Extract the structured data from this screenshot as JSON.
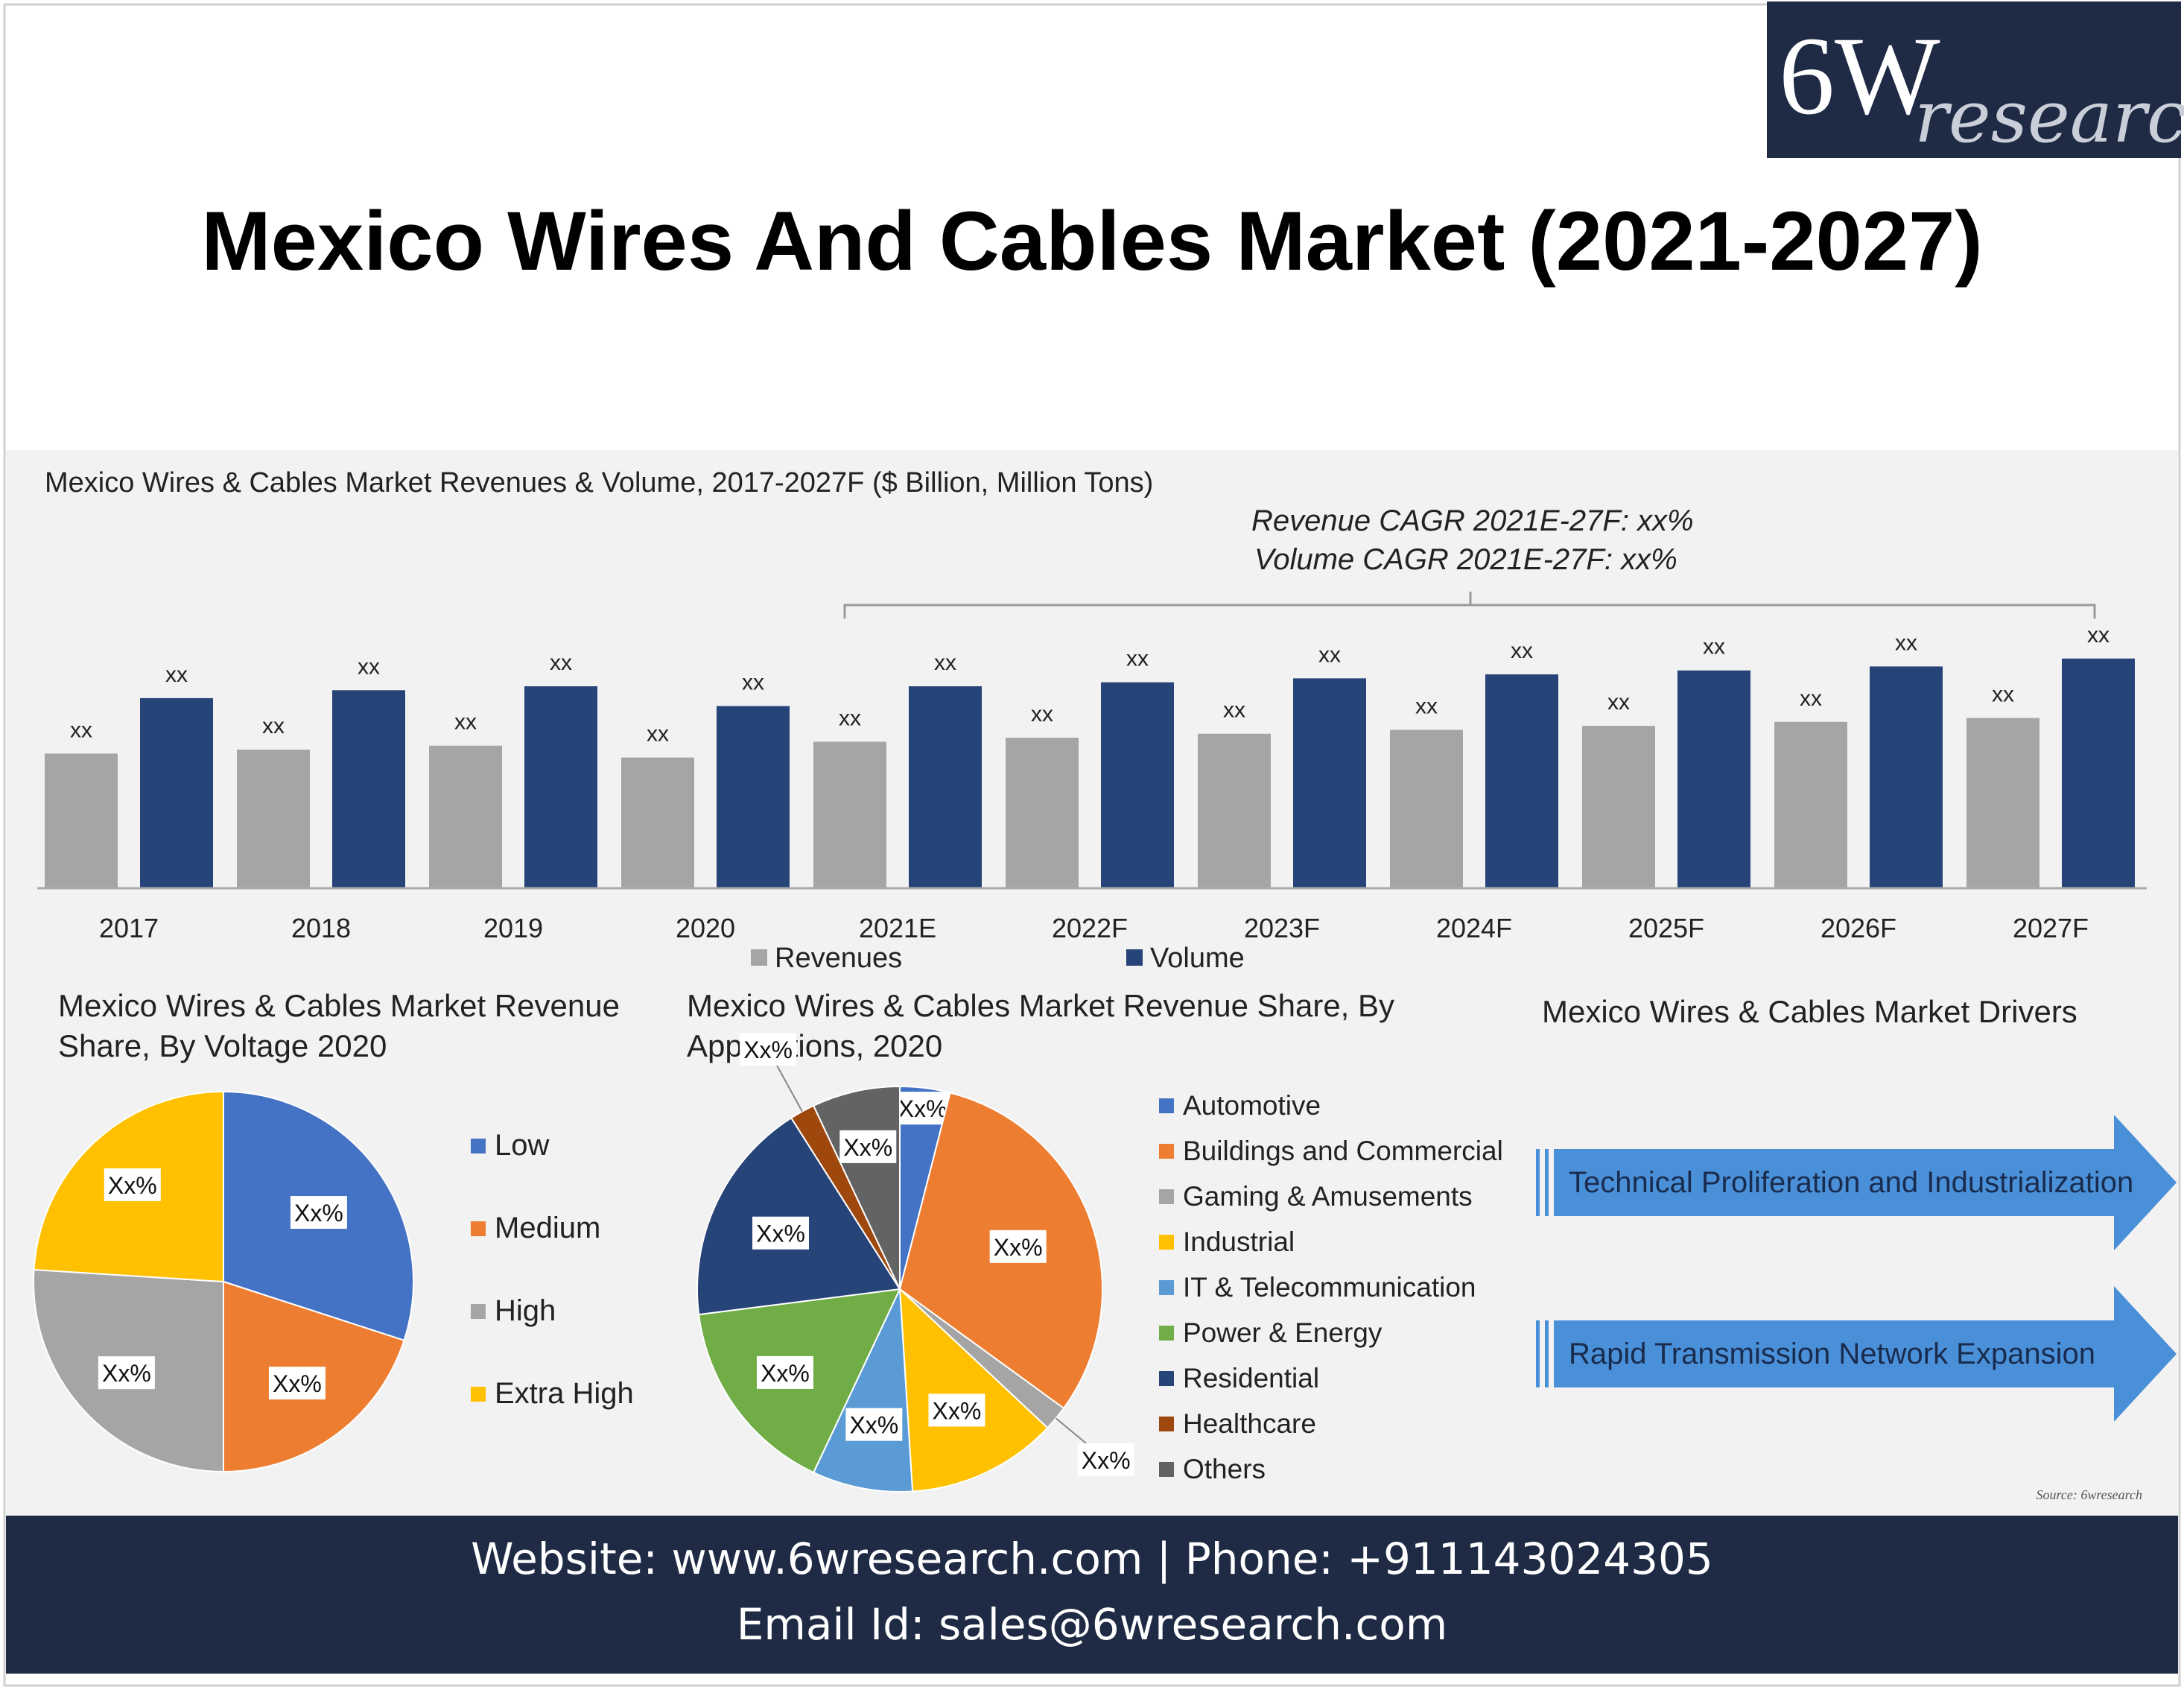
{
  "logo": {
    "big": "6W",
    "small": "research"
  },
  "title": "Mexico Wires And Cables Market (2021-2027)",
  "colors": {
    "revenues": "#a5a5a5",
    "volume": "#264478",
    "panel_bg": "#f2f2f2",
    "footer_bg": "#1f2a44",
    "arrow": "#4a90d9"
  },
  "chart_data": [
    {
      "type": "bar",
      "title": "Mexico Wires & Cables Market Revenues & Volume, 2017-2027F ($ Billion, Million Tons)",
      "categories": [
        "2017",
        "2018",
        "2019",
        "2020",
        "2021E",
        "2022F",
        "2023F",
        "2024F",
        "2025F",
        "2026F",
        "2027F"
      ],
      "series": [
        {
          "name": "Revenues",
          "values": [
            34,
            35,
            36,
            33,
            37,
            38,
            39,
            40,
            41,
            42,
            43
          ],
          "labels": [
            "xx",
            "xx",
            "xx",
            "xx",
            "xx",
            "xx",
            "xx",
            "xx",
            "xx",
            "xx",
            "xx"
          ]
        },
        {
          "name": "Volume",
          "values": [
            48,
            50,
            51,
            46,
            51,
            52,
            53,
            54,
            55,
            56,
            58
          ],
          "labels": [
            "xx",
            "xx",
            "xx",
            "xx",
            "xx",
            "xx",
            "xx",
            "xx",
            "xx",
            "xx",
            "xx"
          ]
        }
      ],
      "annotations": [
        "Revenue CAGR 2021E-27F: xx%",
        "Volume CAGR 2021E-27F: xx%"
      ],
      "legend_position": "bottom",
      "grid": false
    },
    {
      "type": "pie",
      "title": "Mexico Wires & Cables Market Revenue Share, By Voltage 2020",
      "labels": [
        "Low",
        "Medium",
        "High",
        "Extra High"
      ],
      "values": [
        30,
        20,
        26,
        24
      ],
      "slice_labels": [
        "Xx%",
        "Xx%",
        "Xx%",
        "Xx%"
      ],
      "colors": [
        "#4472c4",
        "#ed7d31",
        "#a5a5a5",
        "#ffc000"
      ],
      "legend_position": "right"
    },
    {
      "type": "pie",
      "title": "Mexico Wires & Cables Market Revenue Share, By Applications, 2020",
      "labels": [
        "Automotive",
        "Buildings and Commercial",
        "Gaming & Amusements",
        "Industrial",
        "IT & Telecommunication",
        "Power & Energy",
        "Residential",
        "Healthcare",
        "Others"
      ],
      "values": [
        4,
        31,
        2,
        12,
        8,
        16,
        18,
        2,
        7
      ],
      "slice_labels": [
        "Xx%",
        "Xx%",
        "Xx%",
        "Xx%",
        "Xx%",
        "Xx%",
        "Xx%",
        "Xx%",
        "Xx%"
      ],
      "colors": [
        "#4472c4",
        "#ed7d31",
        "#a5a5a5",
        "#ffc000",
        "#5b9bd5",
        "#70ad47",
        "#264478",
        "#9e480e",
        "#636363"
      ],
      "legend_position": "right"
    }
  ],
  "drivers": {
    "title": "Mexico Wires & Cables Market Drivers",
    "items": [
      "Technical Proliferation and Industrialization",
      "Rapid Transmission Network Expansion"
    ]
  },
  "source": "Source: 6wresearch",
  "footer": {
    "line1": "Website: www.6wresearch.com | Phone: +911143024305",
    "line2": "Email Id: sales@6wresearch.com"
  }
}
